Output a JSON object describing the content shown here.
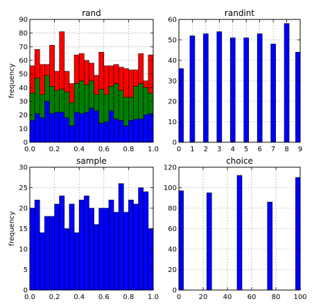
{
  "chart_data": [
    {
      "type": "bar",
      "title": "rand",
      "stacked": true,
      "xlabel": "",
      "ylabel": "frequency",
      "xlim": [
        0.0,
        1.0
      ],
      "ylim": [
        0,
        90
      ],
      "xticks": [
        "0.0",
        "0.2",
        "0.4",
        "0.6",
        "0.8",
        "1.0"
      ],
      "yticks": [
        "0",
        "10",
        "20",
        "30",
        "40",
        "50",
        "60",
        "70",
        "80",
        "90"
      ],
      "grid": true,
      "bins": 25,
      "series": [
        {
          "color": "#0000ff",
          "values": [
            16,
            21,
            18,
            30,
            21,
            22,
            22,
            18,
            12,
            22,
            21,
            22,
            25,
            23,
            14,
            15,
            23,
            17,
            16,
            12,
            16,
            17,
            17,
            20,
            21
          ]
        },
        {
          "color": "#007f00",
          "values": [
            20,
            26,
            17,
            19,
            20,
            16,
            17,
            19,
            17,
            21,
            24,
            20,
            20,
            12,
            25,
            20,
            18,
            26,
            22,
            21,
            17,
            24,
            26,
            20,
            15
          ]
        },
        {
          "color": "#ff0000",
          "values": [
            20,
            21,
            22,
            8,
            30,
            14,
            42,
            15,
            14,
            21,
            20,
            18,
            13,
            14,
            27,
            21,
            15,
            14,
            17,
            21,
            20,
            12,
            22,
            5,
            28
          ]
        }
      ]
    },
    {
      "type": "bar",
      "title": "randint",
      "xlabel": "",
      "ylabel": "",
      "xlim": [
        0,
        9
      ],
      "ylim": [
        0,
        60
      ],
      "xticks": [
        "0",
        "1",
        "2",
        "3",
        "4",
        "5",
        "6",
        "7",
        "8",
        "9"
      ],
      "yticks": [
        "0",
        "10",
        "20",
        "30",
        "40",
        "50",
        "60"
      ],
      "grid": true,
      "color": "#0000ff",
      "x": [
        0,
        1,
        2,
        3,
        4,
        5,
        6,
        7,
        8,
        9
      ],
      "values": [
        36,
        52,
        53,
        54,
        51,
        51,
        53,
        48,
        58,
        44
      ]
    },
    {
      "type": "bar",
      "title": "sample",
      "xlabel": "",
      "ylabel": "frequency",
      "xlim": [
        0.0,
        1.0
      ],
      "ylim": [
        0,
        30
      ],
      "xticks": [
        "0.0",
        "0.2",
        "0.4",
        "0.6",
        "0.8",
        "1.0"
      ],
      "yticks": [
        "0",
        "5",
        "10",
        "15",
        "20",
        "25",
        "30"
      ],
      "grid": true,
      "bins": 25,
      "color": "#0000ff",
      "values": [
        20,
        22,
        14,
        18,
        18,
        21,
        23,
        15,
        21,
        14,
        22,
        23,
        20,
        16,
        20,
        20,
        22,
        19,
        26,
        19,
        22,
        21,
        25,
        24,
        15
      ]
    },
    {
      "type": "bar",
      "title": "choice",
      "xlabel": "",
      "ylabel": "",
      "xlim": [
        0,
        100
      ],
      "ylim": [
        0,
        120
      ],
      "xticks": [
        "0",
        "20",
        "40",
        "60",
        "80",
        "100"
      ],
      "yticks": [
        "0",
        "20",
        "40",
        "60",
        "80",
        "100",
        "120"
      ],
      "grid": true,
      "color": "#0000ff",
      "x": [
        0,
        25,
        50,
        75,
        100
      ],
      "values": [
        97,
        95,
        112,
        86,
        110
      ]
    }
  ]
}
